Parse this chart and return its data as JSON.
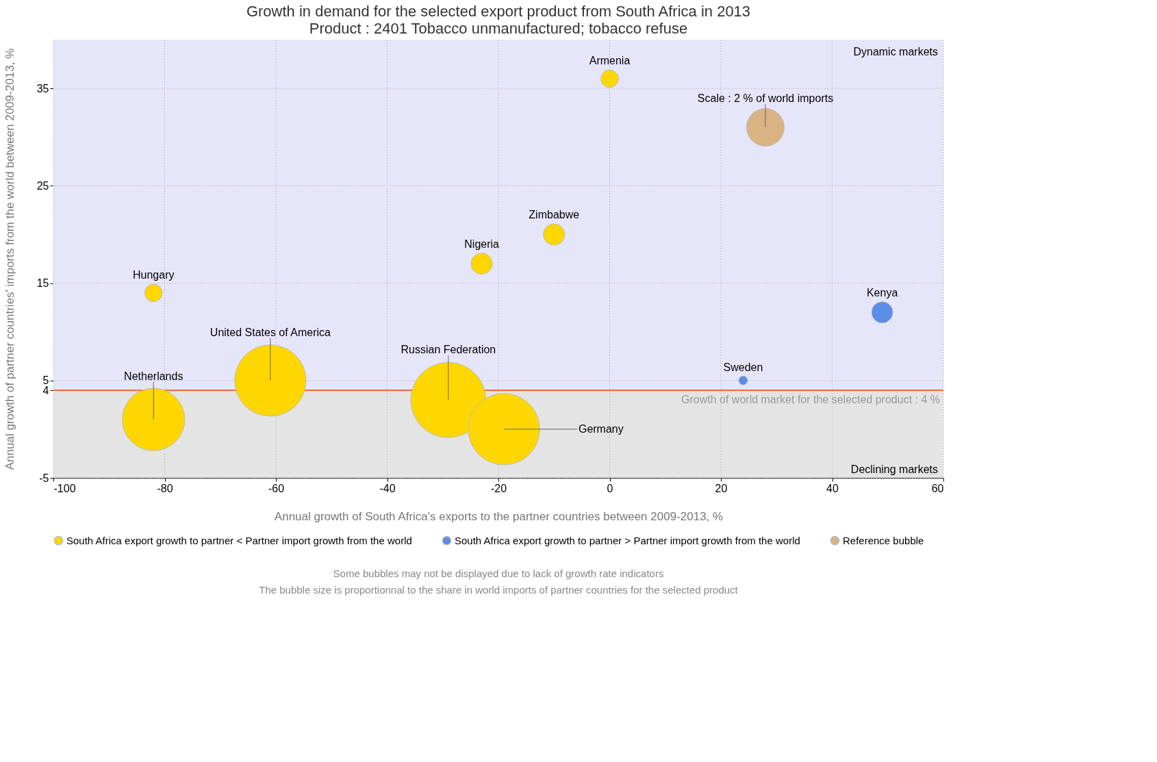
{
  "chart_data": {
    "type": "bubble",
    "title": "Growth in demand for the selected export product from South Africa in 2013",
    "subtitle": "Product : 2401 Tobacco unmanufactured; tobacco refuse",
    "xlabel": "Annual growth of South Africa's exports to the partner countries between 2009-2013, %",
    "ylabel": "Annual growth of partner countries' imports from the world between 2009-2013, %",
    "xlim": [
      -100,
      60
    ],
    "xticks": [
      -100,
      -80,
      -60,
      -40,
      -20,
      0,
      20,
      40,
      60
    ],
    "ylim": [
      -5,
      40
    ],
    "yticks": [
      -5,
      {
        "value": 4,
        "label": "4"
      },
      5,
      15,
      25,
      35
    ],
    "grid": true,
    "legend": "bottom",
    "series": [
      {
        "name": "South Africa export growth to partner < Partner import growth from the world",
        "color": "#ffd700",
        "x": [
          0,
          -10,
          -23,
          -82,
          -61,
          -29,
          -82,
          -19
        ],
        "values": [
          36,
          20,
          17,
          14,
          5,
          3,
          1,
          0
        ],
        "sizes": [
          0.054,
          0.08,
          0.08,
          0.054,
          0.9,
          1,
          0.69,
          0.9
        ]
      },
      {
        "name": "South Africa export growth to partner > Partner import growth from the world",
        "color": "#5b8ee6",
        "x": [
          49,
          24
        ],
        "values": [
          12,
          5
        ],
        "sizes": [
          0.08,
          0.014
        ]
      },
      {
        "name": "Reference bubble",
        "color": "#d9b382",
        "x": [
          28
        ],
        "values": [
          31
        ],
        "sizes": [
          0.25
        ]
      }
    ],
    "bands": [
      {
        "axis": "y",
        "from": 4,
        "to": 40,
        "label": "Dynamic markets",
        "color": "#e6e6fa"
      },
      {
        "axis": "y",
        "from": -5,
        "to": 4,
        "label": "Declining markets",
        "color": "#e4e4e4"
      }
    ],
    "ref_lines": [
      {
        "axis": "y",
        "value": 4,
        "label": "Growth of world market for the selected product : 4 %",
        "color": "#ff4500"
      }
    ],
    "annotations": [
      {
        "text": "Armenia",
        "x": 0,
        "y": 36
      },
      {
        "text": "Zimbabwe",
        "x": -10,
        "y": 20
      },
      {
        "text": "Nigeria",
        "x": -23,
        "y": 17
      },
      {
        "text": "Hungary",
        "x": -82,
        "y": 14
      },
      {
        "text": "Kenya",
        "x": 49,
        "y": 12
      },
      {
        "text": "United States of America",
        "x": -61,
        "y": 5
      },
      {
        "text": "Russian Federation",
        "x": -29,
        "y": 3
      },
      {
        "text": "Sweden",
        "x": 24,
        "y": 5
      },
      {
        "text": "Netherlands",
        "x": -82,
        "y": 1
      },
      {
        "text": "Germany",
        "x": -19,
        "y": 0
      },
      {
        "text": "Scale : 2 % of world imports",
        "x": 28,
        "y": 31
      },
      "Some bubbles may not be displayed due to lack of growth rate indicators",
      "The bubble size is proportionnal to the share in world imports of partner countries for the selected product"
    ]
  }
}
